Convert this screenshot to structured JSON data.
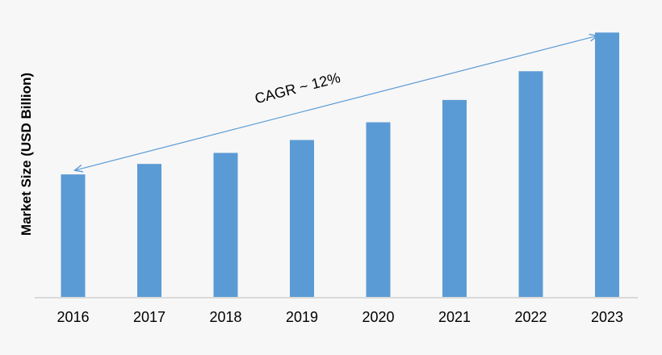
{
  "chart_data": {
    "type": "bar",
    "categories": [
      "2016",
      "2017",
      "2018",
      "2019",
      "2020",
      "2021",
      "2022",
      "2023"
    ],
    "values": [
      45.6,
      49.5,
      53.6,
      58.4,
      65.0,
      73.3,
      84.0,
      98.4
    ],
    "ylabel": "Market Size (USD Billion)",
    "xlabel": "",
    "ylim": [
      0,
      100
    ],
    "grid": false,
    "bar_color": "#5b9bd5",
    "annotation": {
      "text": "CAGR ~ 12%",
      "from_category": "2016",
      "to_category": "2023",
      "arrow_color": "#5b9bd5"
    }
  }
}
